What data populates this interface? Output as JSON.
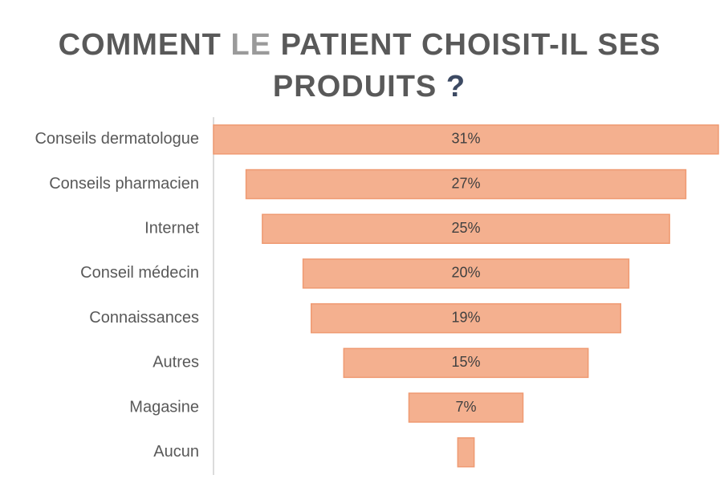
{
  "chart_data": {
    "type": "funnel",
    "title": {
      "line1": [
        "COMMENT",
        "LE",
        "PATIENT CHOISIT-IL SES"
      ],
      "line2": [
        "PRODUITS",
        "?"
      ]
    },
    "categories": [
      "Conseils dermatologue",
      "Conseils pharmacien",
      "Internet",
      "Conseil médecin",
      "Connaissances",
      "Autres",
      "Magasine",
      "Aucun"
    ],
    "values": [
      31,
      27,
      25,
      20,
      19,
      15,
      7,
      1
    ],
    "value_labels": [
      "31%",
      "27%",
      "25%",
      "20%",
      "19%",
      "15%",
      "7%",
      null
    ],
    "color": "#f4b08f"
  }
}
